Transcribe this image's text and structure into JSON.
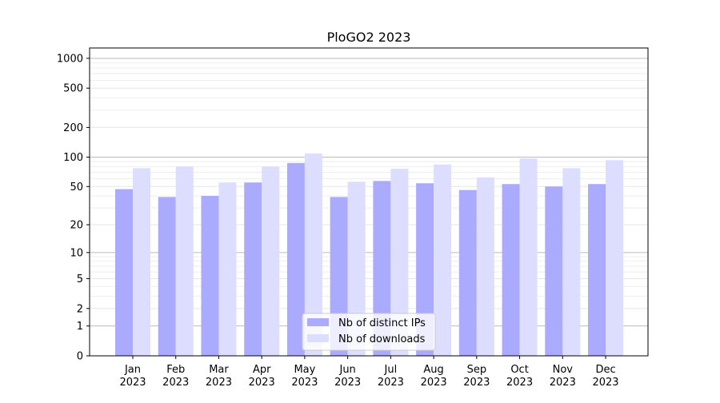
{
  "chart_data": {
    "type": "bar",
    "title": "PloGO2 2023",
    "xlabel": "",
    "ylabel": "",
    "yscale": "symlog (log10(y+1))",
    "ylim": [
      0,
      1300
    ],
    "yticks": [
      0,
      1,
      2,
      5,
      10,
      20,
      50,
      100,
      200,
      500,
      1000
    ],
    "grid": true,
    "legend_placement": "lower center",
    "categories": [
      "Jan\n2023",
      "Feb\n2023",
      "Mar\n2023",
      "Apr\n2023",
      "May\n2023",
      "Jun\n2023",
      "Jul\n2023",
      "Aug\n2023",
      "Sep\n2023",
      "Oct\n2023",
      "Nov\n2023",
      "Dec\n2023"
    ],
    "series": [
      {
        "name": "Nb of distinct IPs",
        "color": "#aaaaff",
        "values": [
          47,
          39,
          40,
          55,
          87,
          39,
          57,
          54,
          46,
          53,
          50,
          53
        ]
      },
      {
        "name": "Nb of downloads",
        "color": "#ddddff",
        "values": [
          77,
          80,
          55,
          80,
          109,
          56,
          76,
          84,
          62,
          97,
          77,
          93
        ]
      }
    ]
  }
}
